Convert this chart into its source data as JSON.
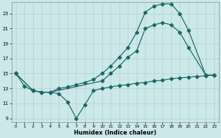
{
  "title": "",
  "xlabel": "Humidex (Indice chaleur)",
  "bg_color": "#cce8e8",
  "grid_color": "#b0d0d0",
  "line_color": "#1a6666",
  "xlim": [
    -0.5,
    23.5
  ],
  "ylim": [
    8.5,
    24.5
  ],
  "xticks": [
    0,
    1,
    2,
    3,
    4,
    5,
    6,
    7,
    8,
    9,
    10,
    11,
    12,
    13,
    14,
    15,
    16,
    17,
    18,
    19,
    20,
    21,
    22,
    23
  ],
  "yticks": [
    9,
    11,
    13,
    15,
    17,
    19,
    21,
    23
  ],
  "line1_x": [
    0,
    1,
    2,
    3,
    4,
    5,
    6,
    7,
    8,
    9,
    10,
    11,
    12,
    13,
    14,
    15,
    16,
    17,
    18,
    19,
    20,
    21,
    22,
    23
  ],
  "line1_y": [
    15.0,
    13.3,
    12.7,
    12.5,
    12.5,
    12.3,
    11.2,
    9.0,
    10.8,
    12.7,
    13.0,
    13.2,
    13.4,
    13.5,
    13.7,
    13.8,
    14.0,
    14.1,
    14.3,
    14.4,
    14.5,
    14.6,
    14.7,
    14.8
  ],
  "line2_x": [
    0,
    2,
    3,
    4,
    5,
    6,
    7,
    8,
    9,
    10,
    11,
    12,
    13,
    14,
    15,
    16,
    17,
    18,
    19,
    20,
    22,
    23
  ],
  "line2_y": [
    15.0,
    12.7,
    12.5,
    12.5,
    13.0,
    13.2,
    13.5,
    13.8,
    14.2,
    15.0,
    16.0,
    17.2,
    18.5,
    20.5,
    23.2,
    24.0,
    24.3,
    24.3,
    23.0,
    20.8,
    14.8,
    14.8
  ],
  "line3_x": [
    0,
    2,
    3,
    4,
    10,
    11,
    12,
    13,
    14,
    15,
    16,
    17,
    18,
    19,
    20,
    22,
    23
  ],
  "line3_y": [
    15.0,
    12.7,
    12.5,
    12.5,
    14.0,
    15.0,
    16.0,
    17.2,
    18.0,
    21.0,
    21.5,
    21.8,
    21.5,
    20.5,
    18.5,
    14.8,
    14.8
  ]
}
